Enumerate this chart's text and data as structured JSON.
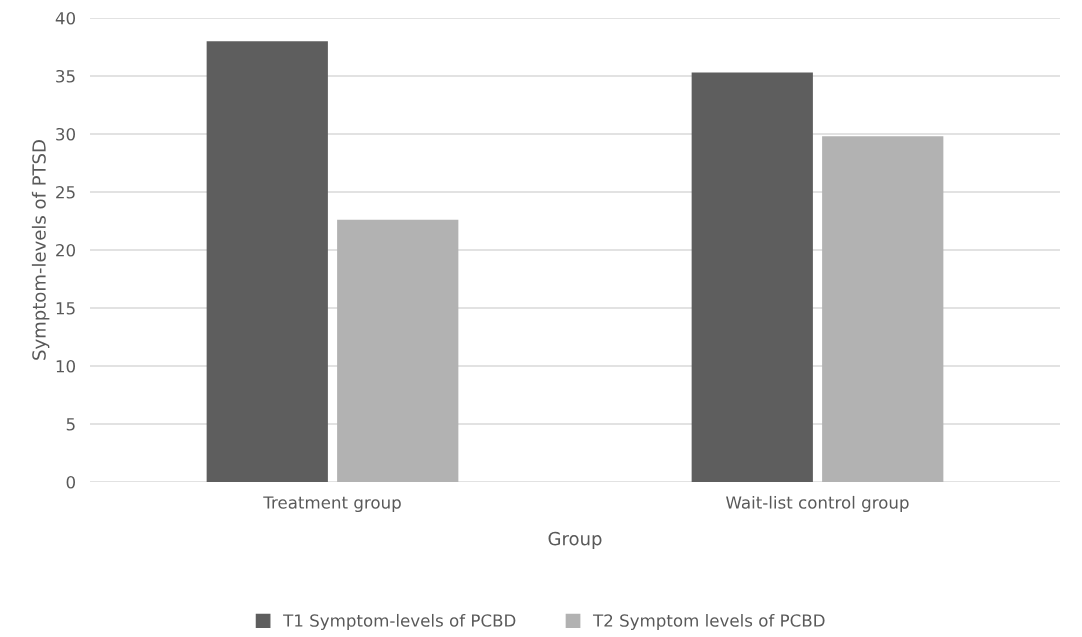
{
  "chart_data": {
    "type": "bar",
    "xlabel": "Group",
    "ylabel": "Symptom-levels of PTSD",
    "categories": [
      "Treatment group",
      "Wait-list control group"
    ],
    "series": [
      {
        "name": "T1 Symptom-levels of PCBD",
        "color": "#5e5e5e",
        "values": [
          38.0,
          35.3
        ]
      },
      {
        "name": "T2 Symptom levels of PCBD",
        "color": "#b2b2b2",
        "values": [
          22.6,
          29.8
        ]
      }
    ],
    "ylim": [
      0,
      40
    ],
    "yticks": [
      0,
      5,
      10,
      15,
      20,
      25,
      30,
      35,
      40
    ],
    "grid": "y",
    "legend": "bottom"
  }
}
